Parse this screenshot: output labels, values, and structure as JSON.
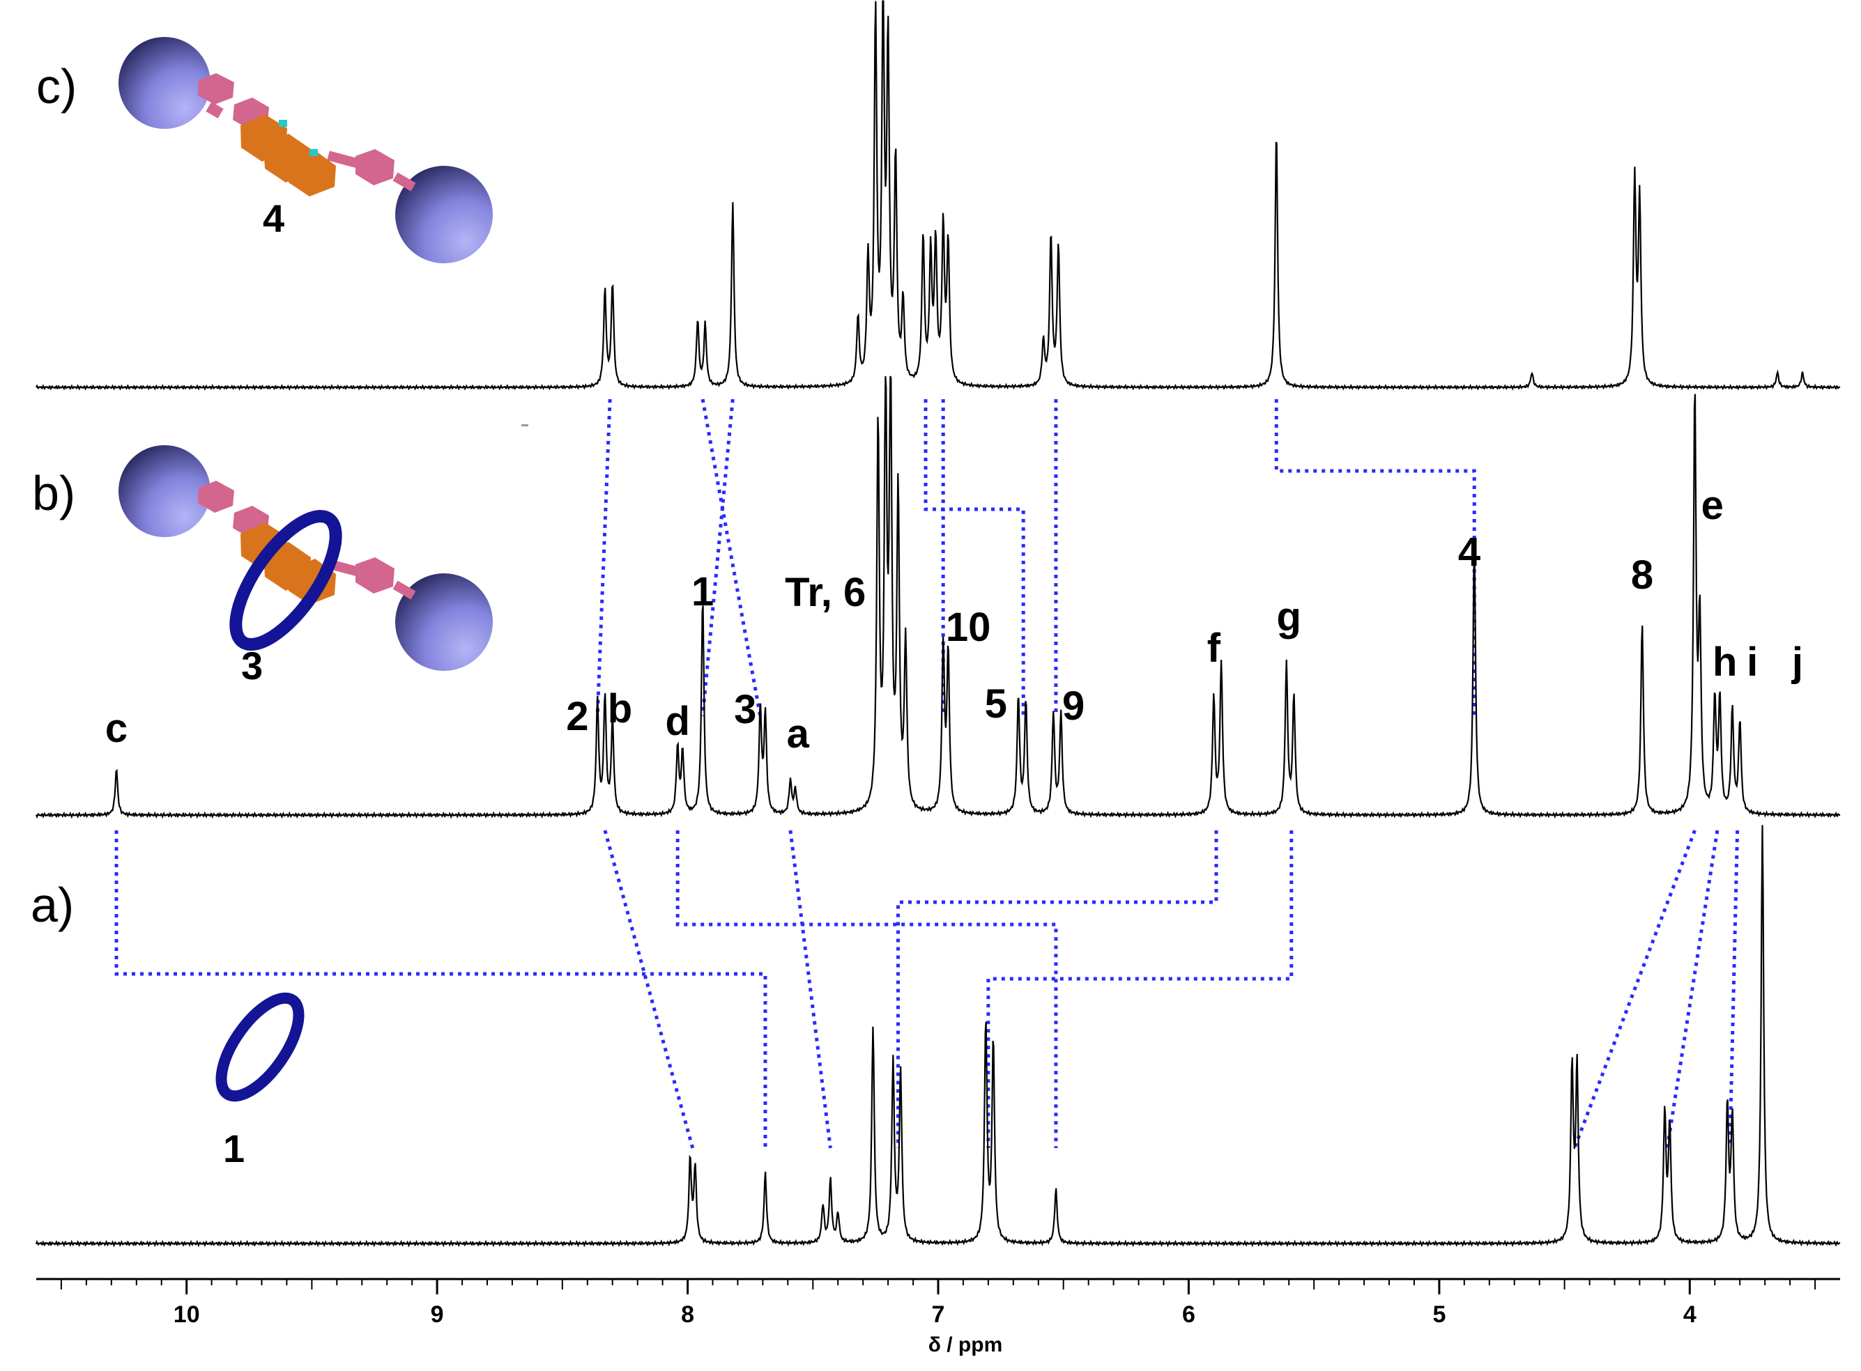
{
  "chart_data": {
    "type": "line",
    "title": "",
    "xlabel": "δ / ppm",
    "ylabel": "",
    "xlim": [
      10.6,
      3.4
    ],
    "x_reversed": true,
    "grid": false,
    "xticks": [
      {
        "value": 10,
        "label": "10"
      },
      {
        "value": 9,
        "label": "9"
      },
      {
        "value": 8,
        "label": "8"
      },
      {
        "value": 7,
        "label": "7"
      },
      {
        "value": 6,
        "label": "6"
      },
      {
        "value": 5,
        "label": "5"
      },
      {
        "value": 4,
        "label": "4"
      }
    ],
    "colors": {
      "trace": "#000000",
      "correlation": "#2a2aff",
      "ball": "#7f7fd9",
      "ring": "#1a1aa0",
      "axle_pink": "#d2668f",
      "axle_orange": "#d9741c"
    },
    "series": [
      {
        "panel": "c)",
        "compound": "4",
        "peaks": [
          {
            "x": 8.33,
            "h": 0.26
          },
          {
            "x": 8.3,
            "h": 0.28
          },
          {
            "x": 7.96,
            "h": 0.18
          },
          {
            "x": 7.93,
            "h": 0.17
          },
          {
            "x": 7.82,
            "h": 0.5
          },
          {
            "x": 7.32,
            "h": 0.18
          },
          {
            "x": 7.28,
            "h": 0.33
          },
          {
            "x": 7.25,
            "h": 1.0
          },
          {
            "x": 7.22,
            "h": 1.0
          },
          {
            "x": 7.2,
            "h": 0.9
          },
          {
            "x": 7.17,
            "h": 0.6
          },
          {
            "x": 7.14,
            "h": 0.22
          },
          {
            "x": 7.06,
            "h": 0.4
          },
          {
            "x": 7.03,
            "h": 0.35
          },
          {
            "x": 7.01,
            "h": 0.38
          },
          {
            "x": 6.98,
            "h": 0.42
          },
          {
            "x": 6.96,
            "h": 0.38
          },
          {
            "x": 6.58,
            "h": 0.12
          },
          {
            "x": 6.55,
            "h": 0.41
          },
          {
            "x": 6.52,
            "h": 0.38
          },
          {
            "x": 5.65,
            "h": 0.7
          },
          {
            "x": 4.63,
            "h": 0.04
          },
          {
            "x": 4.22,
            "h": 0.56
          },
          {
            "x": 4.2,
            "h": 0.5
          },
          {
            "x": 3.65,
            "h": 0.04
          },
          {
            "x": 3.55,
            "h": 0.04
          }
        ]
      },
      {
        "panel": "b)",
        "compound": "3",
        "peaks": [
          {
            "x": 10.28,
            "h": 0.11
          },
          {
            "x": 8.36,
            "h": 0.27
          },
          {
            "x": 8.33,
            "h": 0.28
          },
          {
            "x": 8.3,
            "h": 0.22
          },
          {
            "x": 8.04,
            "h": 0.16
          },
          {
            "x": 8.02,
            "h": 0.15
          },
          {
            "x": 7.94,
            "h": 0.52
          },
          {
            "x": 7.71,
            "h": 0.25
          },
          {
            "x": 7.69,
            "h": 0.24
          },
          {
            "x": 7.59,
            "h": 0.08
          },
          {
            "x": 7.57,
            "h": 0.06
          },
          {
            "x": 7.24,
            "h": 0.92
          },
          {
            "x": 7.21,
            "h": 1.0
          },
          {
            "x": 7.19,
            "h": 1.0
          },
          {
            "x": 7.16,
            "h": 0.75
          },
          {
            "x": 7.13,
            "h": 0.4
          },
          {
            "x": 6.98,
            "h": 0.4
          },
          {
            "x": 6.96,
            "h": 0.38
          },
          {
            "x": 6.68,
            "h": 0.28
          },
          {
            "x": 6.65,
            "h": 0.27
          },
          {
            "x": 6.54,
            "h": 0.24
          },
          {
            "x": 6.51,
            "h": 0.24
          },
          {
            "x": 5.9,
            "h": 0.28
          },
          {
            "x": 5.87,
            "h": 0.36
          },
          {
            "x": 5.61,
            "h": 0.36
          },
          {
            "x": 5.58,
            "h": 0.28
          },
          {
            "x": 4.86,
            "h": 0.65
          },
          {
            "x": 4.19,
            "h": 0.46
          },
          {
            "x": 3.98,
            "h": 1.0
          },
          {
            "x": 3.96,
            "h": 0.45
          },
          {
            "x": 3.9,
            "h": 0.27
          },
          {
            "x": 3.88,
            "h": 0.27
          },
          {
            "x": 3.83,
            "h": 0.25
          },
          {
            "x": 3.8,
            "h": 0.22
          }
        ]
      },
      {
        "panel": "a)",
        "compound": "1",
        "peaks": [
          {
            "x": 7.99,
            "h": 0.2
          },
          {
            "x": 7.97,
            "h": 0.18
          },
          {
            "x": 7.69,
            "h": 0.17
          },
          {
            "x": 7.46,
            "h": 0.09
          },
          {
            "x": 7.43,
            "h": 0.15
          },
          {
            "x": 7.4,
            "h": 0.07
          },
          {
            "x": 7.26,
            "h": 0.52
          },
          {
            "x": 7.18,
            "h": 0.43
          },
          {
            "x": 7.15,
            "h": 0.41
          },
          {
            "x": 6.81,
            "h": 0.53
          },
          {
            "x": 6.78,
            "h": 0.48
          },
          {
            "x": 6.53,
            "h": 0.13
          },
          {
            "x": 4.47,
            "h": 0.42
          },
          {
            "x": 4.45,
            "h": 0.42
          },
          {
            "x": 4.1,
            "h": 0.31
          },
          {
            "x": 4.08,
            "h": 0.28
          },
          {
            "x": 3.85,
            "h": 0.33
          },
          {
            "x": 3.83,
            "h": 0.3
          },
          {
            "x": 3.71,
            "h": 1.0
          }
        ]
      }
    ],
    "annotations": [
      {
        "panel": "b)",
        "text": "c",
        "x": 10.28
      },
      {
        "panel": "b)",
        "text": "2",
        "x": 8.44
      },
      {
        "panel": "b)",
        "text": "b",
        "x": 8.27
      },
      {
        "panel": "b)",
        "text": "d",
        "x": 8.04
      },
      {
        "panel": "b)",
        "text": "1",
        "x": 7.94
      },
      {
        "panel": "b)",
        "text": "3",
        "x": 7.77
      },
      {
        "panel": "b)",
        "text": "a",
        "x": 7.56
      },
      {
        "panel": "b)",
        "text": "Tr, 6",
        "x": 7.45
      },
      {
        "panel": "b)",
        "text": "10",
        "x": 6.88
      },
      {
        "panel": "b)",
        "text": "5",
        "x": 6.77
      },
      {
        "panel": "b)",
        "text": "9",
        "x": 6.46
      },
      {
        "panel": "b)",
        "text": "f",
        "x": 5.9
      },
      {
        "panel": "b)",
        "text": "g",
        "x": 5.6
      },
      {
        "panel": "b)",
        "text": "4",
        "x": 4.88
      },
      {
        "panel": "b)",
        "text": "8",
        "x": 4.19
      },
      {
        "panel": "b)",
        "text": "e",
        "x": 3.91
      },
      {
        "panel": "b)",
        "text": "h",
        "x": 3.86
      },
      {
        "panel": "b)",
        "text": "i",
        "x": 3.75
      },
      {
        "panel": "b)",
        "text": "j",
        "x": 3.57
      }
    ],
    "correlations": [
      {
        "upper": "c",
        "from": 8.31,
        "to": 8.36
      },
      {
        "upper": "c",
        "from": 7.94,
        "to": 7.71
      },
      {
        "upper": "c",
        "from": 7.82,
        "to": 7.94
      },
      {
        "upper": "c",
        "from": 7.05,
        "to": 6.66,
        "step": true
      },
      {
        "upper": "c",
        "from": 6.98,
        "to": 6.98,
        "step": true
      },
      {
        "upper": "c",
        "from": 6.53,
        "to": 6.53
      },
      {
        "upper": "c",
        "from": 5.65,
        "to": 4.86,
        "step": true
      },
      {
        "upper": "b",
        "from": 10.28,
        "to": 7.69,
        "step": true
      },
      {
        "upper": "b",
        "from": 8.33,
        "to": 7.98
      },
      {
        "upper": "b",
        "from": 8.04,
        "to": 6.53,
        "step": true
      },
      {
        "upper": "b",
        "from": 7.59,
        "to": 7.43
      },
      {
        "upper": "b",
        "from": 5.89,
        "to": 7.16,
        "step": true
      },
      {
        "upper": "b",
        "from": 5.59,
        "to": 6.8,
        "step": true
      },
      {
        "upper": "b",
        "from": 3.98,
        "to": 4.46
      },
      {
        "upper": "b",
        "from": 3.89,
        "to": 4.09
      },
      {
        "upper": "b",
        "from": 3.81,
        "to": 3.84
      }
    ]
  },
  "panels": {
    "c": {
      "letter": "c)",
      "compound_number": "4"
    },
    "b": {
      "letter": "b)",
      "compound_number": "3"
    },
    "a": {
      "letter": "a)",
      "compound_number": "1"
    }
  }
}
